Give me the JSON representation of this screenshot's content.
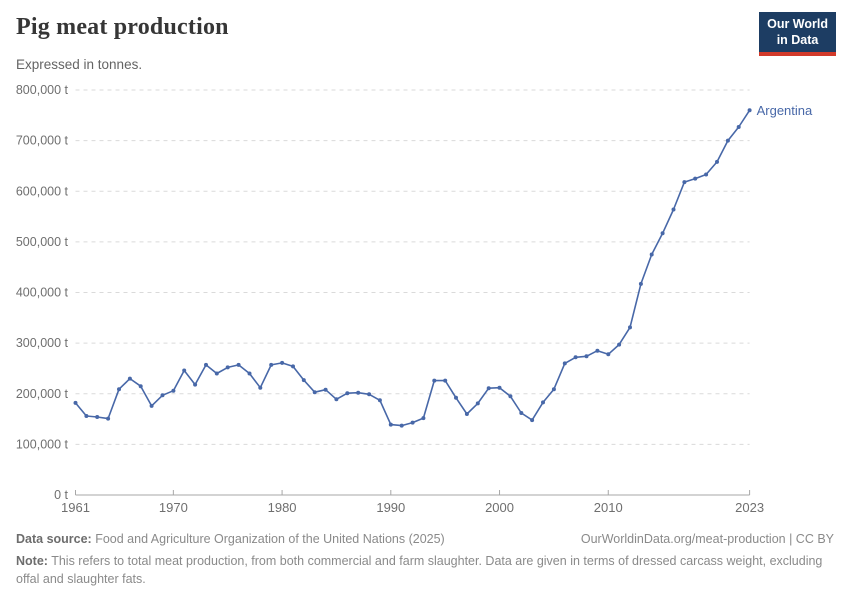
{
  "header": {
    "title": "Pig meat production",
    "subtitle": "Expressed in tonnes.",
    "logo": {
      "line1": "Our World",
      "line2": "in Data",
      "bg_color": "#1d3d63",
      "accent_color": "#d23a2a"
    }
  },
  "chart_data": {
    "type": "line",
    "title": "Pig meat production",
    "xlabel": "",
    "ylabel": "tonnes",
    "unit": " t",
    "grid": "horizontal-dashed",
    "legend_position": "end-of-line-label",
    "xlim": [
      1961,
      2023
    ],
    "ylim": [
      0,
      800000
    ],
    "xticks": [
      1961,
      1970,
      1980,
      1990,
      2000,
      2010,
      2023
    ],
    "yticks": [
      0,
      100000,
      200000,
      300000,
      400000,
      500000,
      600000,
      700000,
      800000
    ],
    "series": [
      {
        "name": "Argentina",
        "color": "#4868a8",
        "points": [
          [
            1961,
            182000
          ],
          [
            1962,
            156000
          ],
          [
            1963,
            154000
          ],
          [
            1964,
            151000
          ],
          [
            1965,
            209000
          ],
          [
            1966,
            230000
          ],
          [
            1967,
            215000
          ],
          [
            1968,
            176000
          ],
          [
            1969,
            197000
          ],
          [
            1970,
            206000
          ],
          [
            1971,
            246000
          ],
          [
            1972,
            218000
          ],
          [
            1973,
            257000
          ],
          [
            1974,
            240000
          ],
          [
            1975,
            252000
          ],
          [
            1976,
            257000
          ],
          [
            1977,
            240000
          ],
          [
            1978,
            212000
          ],
          [
            1979,
            257000
          ],
          [
            1980,
            261000
          ],
          [
            1981,
            254000
          ],
          [
            1982,
            227000
          ],
          [
            1983,
            203000
          ],
          [
            1984,
            208000
          ],
          [
            1985,
            189000
          ],
          [
            1986,
            201000
          ],
          [
            1987,
            202000
          ],
          [
            1988,
            199000
          ],
          [
            1989,
            187000
          ],
          [
            1990,
            139000
          ],
          [
            1991,
            137000
          ],
          [
            1992,
            143000
          ],
          [
            1993,
            152000
          ],
          [
            1994,
            226000
          ],
          [
            1995,
            226000
          ],
          [
            1996,
            192000
          ],
          [
            1997,
            160000
          ],
          [
            1998,
            181000
          ],
          [
            1999,
            211000
          ],
          [
            2000,
            212000
          ],
          [
            2001,
            195000
          ],
          [
            2002,
            162000
          ],
          [
            2003,
            148000
          ],
          [
            2004,
            183000
          ],
          [
            2005,
            209000
          ],
          [
            2006,
            260000
          ],
          [
            2007,
            272000
          ],
          [
            2008,
            274000
          ],
          [
            2009,
            285000
          ],
          [
            2010,
            278000
          ],
          [
            2011,
            297000
          ],
          [
            2012,
            331000
          ],
          [
            2013,
            417000
          ],
          [
            2014,
            475000
          ],
          [
            2015,
            517000
          ],
          [
            2016,
            564000
          ],
          [
            2017,
            618000
          ],
          [
            2018,
            625000
          ],
          [
            2019,
            633000
          ],
          [
            2020,
            658000
          ],
          [
            2021,
            700000
          ],
          [
            2022,
            727000
          ],
          [
            2023,
            760000
          ]
        ]
      }
    ],
    "colors": {
      "gridline": "#dadada",
      "axis": "#a7a7a7",
      "tick_label": "#6f6f6f"
    }
  },
  "footer": {
    "source_label": "Data source:",
    "source_text": " Food and Agriculture Organization of the United Nations (2025)",
    "link_text": "OurWorldinData.org/meat-production | CC BY",
    "note_label": "Note:",
    "note_text": " This refers to total meat production, from both commercial and farm slaughter. Data are given in terms of dressed carcass weight, excluding offal and slaughter fats."
  }
}
